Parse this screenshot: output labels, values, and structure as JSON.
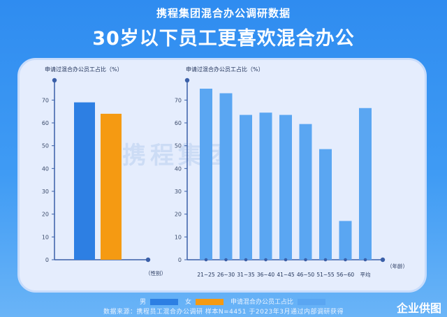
{
  "header": {
    "subtitle": "携程集团混合办公调研数据",
    "title": "30岁以下员工更喜欢混合办公"
  },
  "watermark": "携程集团",
  "legend": {
    "male": "男",
    "female": "女",
    "series": "申请混合办公员工占比"
  },
  "source_line": "数据来源：携程员工混合办公调研    样本N=4451    于2023年3月通过内部调研获得",
  "brand": "企业供图",
  "colors": {
    "male": "#2d7fe3",
    "female": "#f59a12",
    "age": "#5aa6f2",
    "axis": "#3a5fa8"
  },
  "chart_data": [
    {
      "type": "bar",
      "ylabel": "申请过混合办公员工占比（%）",
      "xlabel": "（性别）",
      "ylim": [
        0,
        75
      ],
      "yticks": [
        0,
        10,
        20,
        30,
        40,
        50,
        60,
        70
      ],
      "categories": [
        "男",
        "女"
      ],
      "values": [
        69,
        64
      ]
    },
    {
      "type": "bar",
      "ylabel": "申请过混合办公员工占比（%）",
      "xlabel": "（年龄）",
      "ylim": [
        0,
        75
      ],
      "yticks": [
        0,
        10,
        20,
        30,
        40,
        50,
        60,
        70
      ],
      "categories": [
        "21~25",
        "26~30",
        "31~35",
        "36~40",
        "41~45",
        "46~50",
        "51~55",
        "56~60",
        "平均"
      ],
      "values": [
        75,
        73,
        63.5,
        64.5,
        63.5,
        59.5,
        48.5,
        17,
        66.5
      ]
    }
  ]
}
